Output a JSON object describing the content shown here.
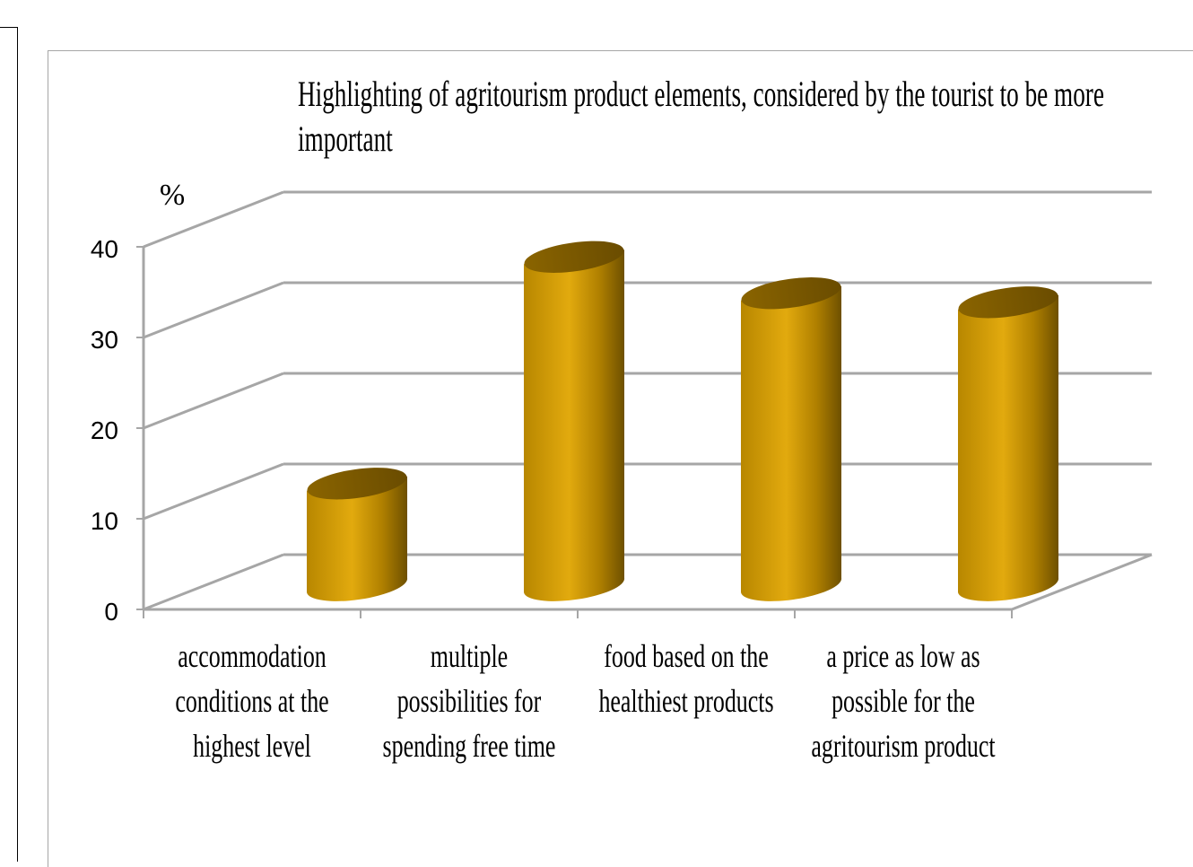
{
  "chart_data": {
    "type": "bar",
    "title": "Highlighting of agritourism product elements, considered by the tourist to be more important",
    "ylabel": "%",
    "xlabel": "",
    "ylim": [
      0,
      40
    ],
    "yticks": [
      "0",
      "10",
      "20",
      "30",
      "40"
    ],
    "grid": true,
    "style": "3d-cylinder",
    "categories": [
      "accommodation conditions at the highest level",
      "multiple possibilities for spending free time",
      "food based on the healthiest products",
      "a price as low as possible for the agritourism product"
    ],
    "values": [
      12,
      37,
      33,
      32
    ],
    "colors": {
      "bar": "#d9a40c",
      "bar_dark": "#7a5a00",
      "grid": "#a6a6a6"
    }
  }
}
